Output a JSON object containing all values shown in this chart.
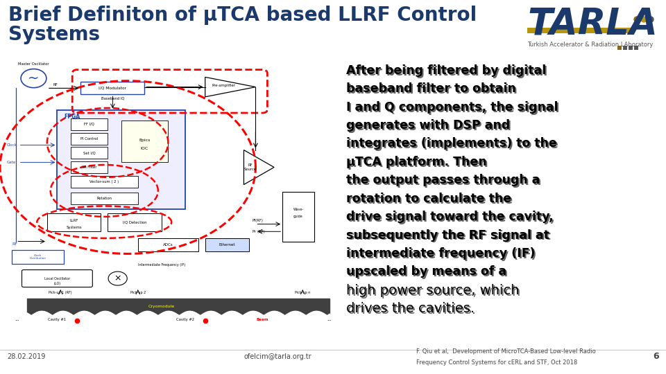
{
  "title_line1": "Brief Definiton of μTCA based LLRF Control",
  "title_line2": "Systems",
  "title_color": "#1B3A6B",
  "title_fontsize": 20,
  "background_color": "#FFFFFF",
  "footer_left": "28.02.2019",
  "footer_center": "ofelcim@tarla.org.tr",
  "footer_right_line1": "F. Qiu et al,  Development of MicroTCA-Based Low-level Radio",
  "footer_right_line2": "Frequency Control Systems for cERL and STF, Oct 2018",
  "page_number": "6",
  "text_block_lines": [
    "After being filtered by digital",
    "baseband filter to obtain",
    "I and Q components, the signal",
    "generates with DSP and",
    "integrates (implements) to the",
    "μTCA platform. Then",
    "the output passes through a",
    "rotation to calculate the",
    "drive signal toward the cavity,",
    "subsequently the RF signal at",
    "intermediate frequency (IF)",
    "upscaled by means of a",
    "high power source, which",
    "drives the cavities."
  ],
  "tarla_text": "TARLA",
  "tarla_subtitle": "Turkish Accelerator & Radiation LAboratory",
  "tarla_color": "#1B3A6B",
  "tarla_gold": "#B8960C",
  "dot_colors": [
    "#8B6914",
    "#B8960C",
    "#8B6914",
    "#444444",
    "#444444",
    "#444444"
  ]
}
